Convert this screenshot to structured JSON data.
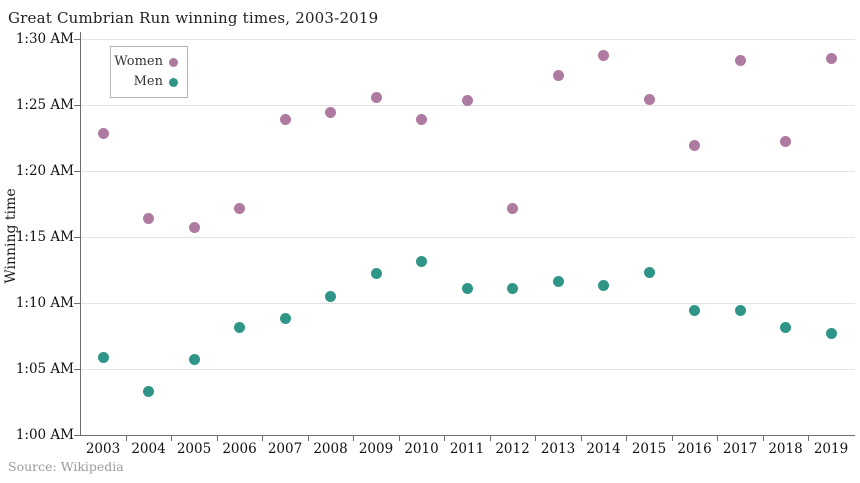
{
  "chart_data": {
    "type": "scatter",
    "title": "Great Cumbrian Run winning times, 2003-2019",
    "y_axis_title": "Winning time",
    "source": "Source: Wikipedia",
    "legend_position": "top-left",
    "grid": "horizontal",
    "x": [
      2003,
      2004,
      2005,
      2006,
      2007,
      2008,
      2009,
      2010,
      2011,
      2012,
      2013,
      2014,
      2015,
      2016,
      2017,
      2018,
      2019
    ],
    "y_unit": "minutes after 1:00 AM",
    "ylim": [
      0,
      30
    ],
    "y_tick_values": [
      0,
      5,
      10,
      15,
      20,
      25,
      30
    ],
    "y_tick_labels": [
      "1:00 AM",
      "1:05 AM",
      "1:10 AM",
      "1:15 AM",
      "1:20 AM",
      "1:25 AM",
      "1:30 AM"
    ],
    "series": [
      {
        "name": "Women",
        "color": "#ae7aa0",
        "values": [
          22.8,
          16.4,
          15.7,
          17.1,
          23.9,
          24.4,
          25.5,
          23.9,
          25.3,
          17.1,
          27.2,
          28.7,
          25.4,
          21.9,
          28.3,
          22.2,
          28.5
        ]
      },
      {
        "name": "Men",
        "color": "#2f9687",
        "values": [
          5.9,
          3.3,
          5.7,
          8.1,
          8.8,
          10.5,
          12.2,
          13.1,
          11.1,
          11.1,
          11.6,
          11.3,
          12.3,
          9.4,
          9.4,
          8.1,
          7.7
        ]
      }
    ]
  }
}
